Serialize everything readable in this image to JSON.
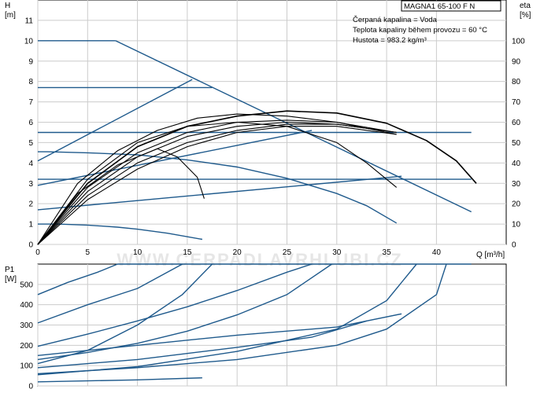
{
  "colors": {
    "blue": "#1f5a8c",
    "black": "#000000",
    "grid": "#cccccc"
  },
  "chart_data": [
    {
      "type": "line",
      "name": "head",
      "ylabel": "H",
      "yunit": "[m]",
      "y2label": "eta",
      "y2unit": "[%]",
      "xlabel": "Q [m³/h]",
      "xlim": [
        0,
        47
      ],
      "ylim": [
        0,
        12
      ],
      "y2lim": [
        0,
        120
      ],
      "x_ticks": [
        "0",
        "5",
        "10",
        "15",
        "20",
        "25",
        "30",
        "35",
        "40"
      ],
      "y_ticks": [
        "0",
        "1",
        "2",
        "3",
        "4",
        "5",
        "6",
        "7",
        "8",
        "9",
        "10",
        "11"
      ],
      "y2_ticks": [
        "0",
        "10",
        "20",
        "30",
        "40",
        "50",
        "60",
        "70",
        "80",
        "90",
        "100"
      ],
      "grid": true,
      "title": "MAGNA1 65-100 F N",
      "notes": [
        "Čerpaná kapalina = Voda",
        "Teplota kapaliny během provozu = 60 °C",
        "Hustota = 983.2 kg/m³"
      ],
      "series_blue_head": [
        {
          "x": [
            0,
            7.8
          ],
          "y": [
            10,
            10
          ]
        },
        {
          "x": [
            7.8,
            43.5
          ],
          "y": [
            10,
            1.6
          ]
        },
        {
          "x": [
            0,
            17.5
          ],
          "y": [
            7.7,
            7.7
          ]
        },
        {
          "x": [
            0,
            43.5
          ],
          "y": [
            5.5,
            5.5
          ]
        },
        {
          "x": [
            0,
            43.5
          ],
          "y": [
            3.2,
            3.2
          ]
        },
        {
          "x": [
            0,
            15.5
          ],
          "y": [
            4.1,
            8.1
          ]
        },
        {
          "x": [
            0,
            27.5
          ],
          "y": [
            2.9,
            5.6
          ]
        },
        {
          "x": [
            0,
            36.5
          ],
          "y": [
            1.7,
            3.35
          ]
        },
        {
          "x": [
            0,
            1,
            5,
            10,
            15,
            20,
            25,
            30,
            33,
            36
          ],
          "y": [
            4.55,
            4.55,
            4.5,
            4.4,
            4.15,
            3.8,
            3.25,
            2.5,
            1.9,
            1.05
          ]
        },
        {
          "x": [
            0,
            2,
            5,
            8,
            10,
            13,
            16.5
          ],
          "y": [
            1,
            1,
            0.95,
            0.85,
            0.75,
            0.55,
            0.25
          ]
        }
      ],
      "series_black_eta": [
        {
          "x": [
            0,
            4,
            8,
            12,
            14,
            16,
            16.7
          ],
          "y": [
            0,
            25,
            39,
            47,
            43,
            33,
            22.5
          ]
        },
        {
          "x": [
            0,
            5,
            10,
            15,
            20,
            25,
            30,
            33,
            36
          ],
          "y": [
            0,
            32,
            50,
            58,
            60,
            58,
            50,
            40,
            28
          ]
        },
        {
          "x": [
            0,
            5,
            10,
            15,
            20,
            25,
            30,
            35,
            39,
            42,
            44
          ],
          "y": [
            0,
            30,
            48,
            58,
            63,
            65.5,
            64.5,
            59.5,
            51,
            41,
            30
          ]
        },
        {
          "x": [
            0,
            4,
            8,
            12,
            16,
            20,
            25,
            30,
            36
          ],
          "y": [
            0,
            30,
            46,
            56,
            62,
            64,
            63,
            60,
            54
          ]
        },
        {
          "x": [
            0,
            5,
            10,
            15,
            20,
            25,
            30,
            36
          ],
          "y": [
            0,
            28,
            45,
            55,
            60,
            61,
            60,
            55
          ]
        },
        {
          "x": [
            0,
            5,
            10,
            15,
            20,
            25,
            30,
            36
          ],
          "y": [
            0,
            26,
            43,
            53,
            58,
            60,
            59,
            55
          ]
        },
        {
          "x": [
            0,
            5,
            10,
            15,
            20,
            25,
            30,
            36
          ],
          "y": [
            0,
            24,
            40,
            50,
            56,
            59,
            59,
            55
          ]
        },
        {
          "x": [
            0,
            5,
            10,
            15,
            20,
            25,
            30,
            36
          ],
          "y": [
            0,
            22,
            37,
            48,
            55,
            58,
            58,
            54
          ]
        }
      ]
    },
    {
      "type": "line",
      "name": "power",
      "ylabel": "P1",
      "yunit": "[W]",
      "xlim": [
        0,
        47
      ],
      "ylim": [
        0,
        600
      ],
      "y_ticks": [
        "0",
        "100",
        "200",
        "300",
        "400",
        "500"
      ],
      "grid": true,
      "series_blue_power": [
        {
          "x": [
            0,
            3,
            6,
            8
          ],
          "y": [
            450,
            510,
            560,
            600
          ]
        },
        {
          "x": [
            8,
            43.5
          ],
          "y": [
            600,
            600
          ]
        },
        {
          "x": [
            0,
            5,
            10,
            14.5
          ],
          "y": [
            310,
            400,
            480,
            600
          ]
        },
        {
          "x": [
            0,
            5,
            10,
            14.5,
            17.5
          ],
          "y": [
            110,
            175,
            300,
            450,
            600
          ]
        },
        {
          "x": [
            0,
            5,
            10,
            15,
            20,
            25,
            27.5
          ],
          "y": [
            195,
            255,
            320,
            390,
            470,
            560,
            600
          ]
        },
        {
          "x": [
            0,
            5,
            10,
            15,
            20,
            25,
            29.5
          ],
          "y": [
            130,
            165,
            210,
            270,
            350,
            450,
            600
          ]
        },
        {
          "x": [
            0,
            10,
            20,
            27.5,
            33
          ],
          "y": [
            90,
            130,
            190,
            240,
            320
          ]
        },
        {
          "x": [
            0,
            10,
            20,
            30,
            35,
            38
          ],
          "y": [
            55,
            95,
            170,
            280,
            420,
            600
          ]
        },
        {
          "x": [
            0,
            10,
            20,
            30,
            36.5
          ],
          "y": [
            150,
            200,
            250,
            290,
            355
          ]
        },
        {
          "x": [
            0,
            10,
            20,
            30,
            35,
            40,
            41
          ],
          "y": [
            60,
            90,
            130,
            200,
            280,
            450,
            600
          ]
        },
        {
          "x": [
            0,
            10,
            16.5
          ],
          "y": [
            20,
            30,
            40
          ]
        }
      ]
    }
  ],
  "watermark": "WWW.CERPADLAVRHLUBI.CZ"
}
